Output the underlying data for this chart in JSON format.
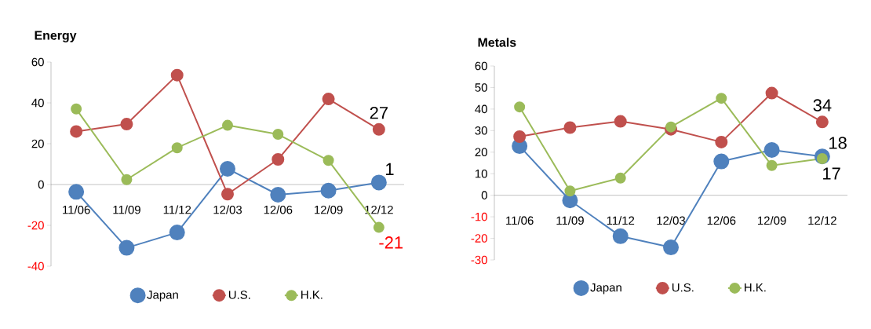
{
  "chart_data": [
    {
      "type": "line",
      "title": "Energy",
      "categories": [
        "11/06",
        "11/09",
        "11/12",
        "12/03",
        "12/06",
        "12/09",
        "12/12"
      ],
      "series": [
        {
          "name": "Japan",
          "color": "#4f81bd",
          "values": [
            -3.6,
            -31,
            -23.5,
            7.7,
            -5,
            -3,
            1
          ],
          "value_labels": [
            null,
            null,
            null,
            null,
            null,
            null,
            "1"
          ]
        },
        {
          "name": "U.S.",
          "color": "#c0504d",
          "values": [
            26,
            29.6,
            53.6,
            -4.7,
            12.3,
            41.9,
            27
          ],
          "value_labels": [
            null,
            null,
            null,
            null,
            null,
            null,
            "27"
          ]
        },
        {
          "name": "H.K.",
          "color": "#9bbb59",
          "values": [
            37,
            2.4,
            18,
            29,
            24.6,
            11.8,
            -21
          ],
          "value_labels": [
            null,
            null,
            null,
            null,
            null,
            null,
            "-21"
          ]
        }
      ],
      "ylim": [
        -40,
        60
      ],
      "yticks": [
        -40,
        -20,
        0,
        20,
        40,
        60
      ],
      "legend": "bottom",
      "marker": "circle",
      "grid": false
    },
    {
      "type": "line",
      "title": "Metals",
      "categories": [
        "11/06",
        "11/09",
        "11/12",
        "12/03",
        "12/06",
        "12/09",
        "12/12"
      ],
      "series": [
        {
          "name": "Japan",
          "color": "#4f81bd",
          "values": [
            22.8,
            -2.4,
            -19,
            -24.2,
            15.7,
            21,
            18
          ],
          "value_labels": [
            null,
            null,
            null,
            null,
            null,
            null,
            "18"
          ]
        },
        {
          "name": "U.S.",
          "color": "#c0504d",
          "values": [
            27.2,
            31.4,
            34.3,
            30.6,
            24.7,
            47.4,
            34
          ],
          "value_labels": [
            null,
            null,
            null,
            null,
            null,
            null,
            "34"
          ]
        },
        {
          "name": "H.K.",
          "color": "#9bbb59",
          "values": [
            41,
            2,
            8,
            31.7,
            45,
            13.8,
            17
          ],
          "value_labels": [
            null,
            null,
            null,
            null,
            null,
            null,
            "17"
          ]
        }
      ],
      "ylim": [
        -30,
        60
      ],
      "yticks": [
        -30,
        -20,
        -10,
        0,
        10,
        20,
        30,
        40,
        50,
        60
      ],
      "legend": "bottom",
      "marker": "circle",
      "grid": false
    }
  ]
}
